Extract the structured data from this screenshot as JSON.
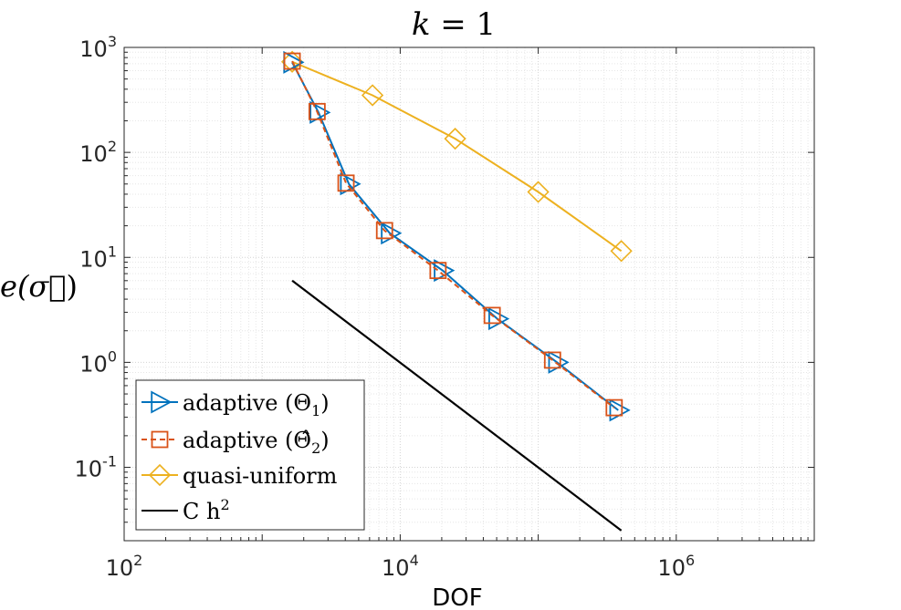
{
  "chart_data": {
    "type": "line",
    "scale": "loglog",
    "title": "k = 1",
    "title_var": "k",
    "title_eq": " = 1",
    "xlabel": "DOF",
    "ylabel": "e(σ⃗)",
    "ylabel_parts": {
      "e": "e(",
      "sigma": "σ⃗",
      "close": ")"
    },
    "xlim": [
      100,
      10000000
    ],
    "ylim": [
      0.02,
      1000
    ],
    "x_ticks": [
      {
        "value": 100,
        "base": "10",
        "exp": "2"
      },
      {
        "value": 10000,
        "base": "10",
        "exp": "4"
      },
      {
        "value": 1000000,
        "base": "10",
        "exp": "6"
      }
    ],
    "y_ticks": [
      {
        "value": 0.1,
        "base": "10",
        "exp": "-1"
      },
      {
        "value": 1,
        "base": "10",
        "exp": "0"
      },
      {
        "value": 10,
        "base": "10",
        "exp": "1"
      },
      {
        "value": 100,
        "base": "10",
        "exp": "2"
      },
      {
        "value": 1000,
        "base": "10",
        "exp": "3"
      }
    ],
    "grid": true,
    "minor_grid": true,
    "legend_position": "bottom-left",
    "series": [
      {
        "name": "adaptive (Θ1)",
        "legend": {
          "text": "adaptive (Θ",
          "sub": "1",
          "close": ")"
        },
        "color": "#0072BD",
        "marker": "triangle-right",
        "linestyle": "solid",
        "x": [
          1650,
          2560,
          4250,
          8400,
          20300,
          50500,
          137000,
          380000
        ],
        "y": [
          720,
          240,
          50,
          17,
          7.5,
          2.6,
          1.0,
          0.35
        ]
      },
      {
        "name": "adaptive (Θ̂2)",
        "legend": {
          "text": "adaptive (Θ̂",
          "sub": "2",
          "close": ")"
        },
        "color": "#D95319",
        "marker": "square",
        "linestyle": "dashed",
        "x": [
          1650,
          2500,
          4050,
          7700,
          18800,
          46400,
          127000,
          355000
        ],
        "y": [
          740,
          245,
          51,
          18,
          7.5,
          2.8,
          1.05,
          0.37
        ]
      },
      {
        "name": "quasi-uniform",
        "legend": {
          "text": "quasi-uniform",
          "sub": "",
          "close": ""
        },
        "color": "#EDB120",
        "marker": "diamond",
        "linestyle": "solid",
        "x": [
          1650,
          6300,
          25000,
          100000,
          400000
        ],
        "y": [
          730,
          350,
          135,
          42,
          11.5
        ]
      },
      {
        "name": "C h^2",
        "legend": {
          "text": "C h",
          "sub": "",
          "close": "",
          "sup": "2"
        },
        "color": "#000000",
        "marker": "none",
        "linestyle": "solid",
        "x": [
          1650,
          400000
        ],
        "y": [
          6.0,
          0.025
        ]
      }
    ]
  }
}
